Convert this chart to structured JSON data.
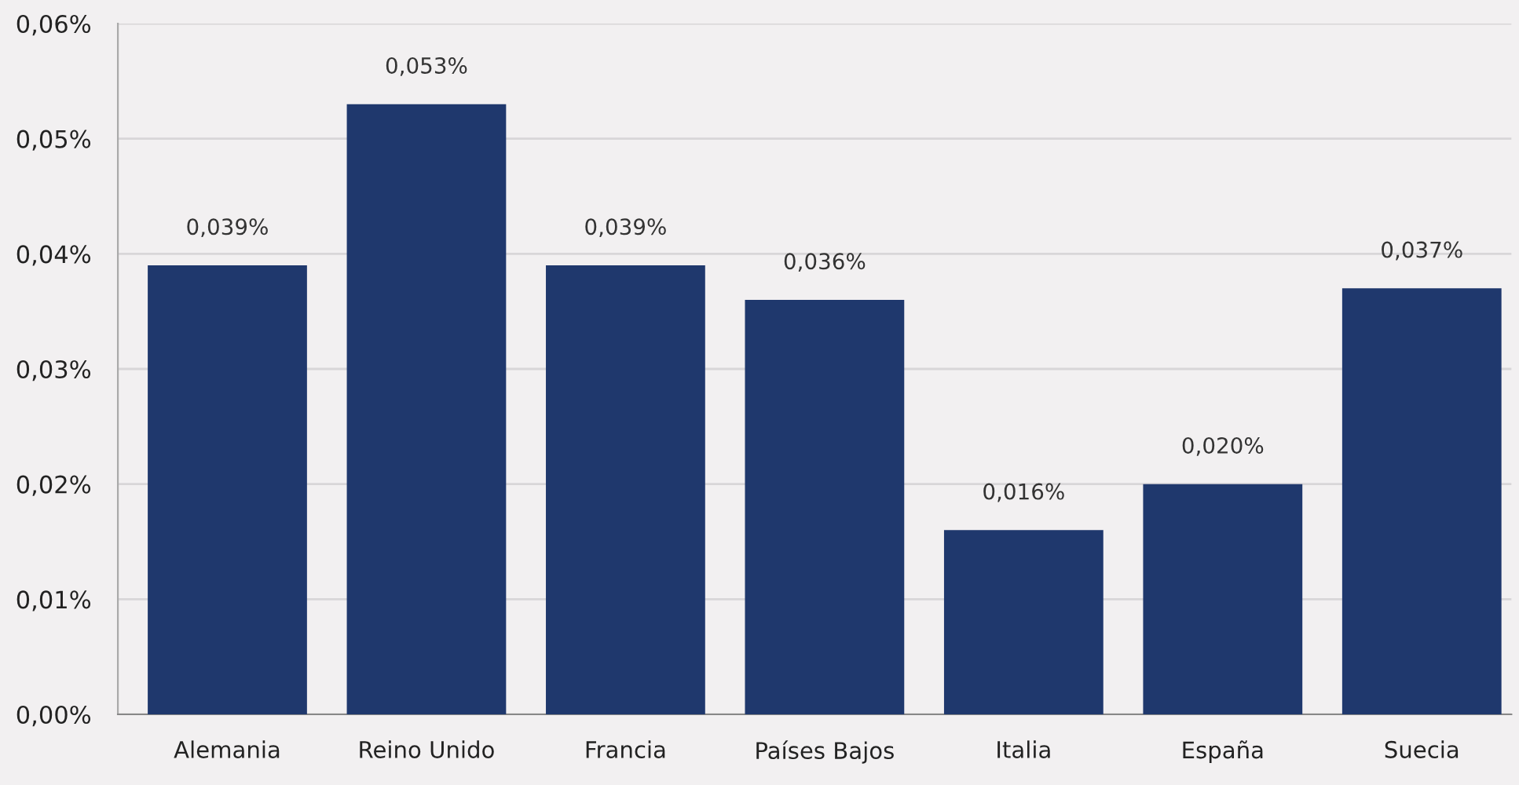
{
  "chart_data": {
    "type": "bar",
    "categories": [
      "Alemania",
      "Reino Unido",
      "Francia",
      "Países Bajos",
      "Italia",
      "España",
      "Suecia"
    ],
    "values": [
      0.039,
      0.053,
      0.039,
      0.036,
      0.016,
      0.02,
      0.037
    ],
    "value_labels": [
      "0,039%",
      "0,053%",
      "0,039%",
      "0,036%",
      "0,016%",
      "0,020%",
      "0,037%"
    ],
    "color": "#1f386d",
    "ylim": [
      0,
      0.06
    ],
    "yticks": [
      {
        "value": 0,
        "label": "0,00%"
      },
      {
        "value": 0.01,
        "label": "0,01%"
      },
      {
        "value": 0.02,
        "label": "0,02%"
      },
      {
        "value": 0.03,
        "label": "0,03%"
      },
      {
        "value": 0.04,
        "label": "0,04%"
      },
      {
        "value": 0.05,
        "label": "0,05%"
      },
      {
        "value": 0.06,
        "label": "0,06%"
      }
    ],
    "grid": "y",
    "legend": false
  }
}
